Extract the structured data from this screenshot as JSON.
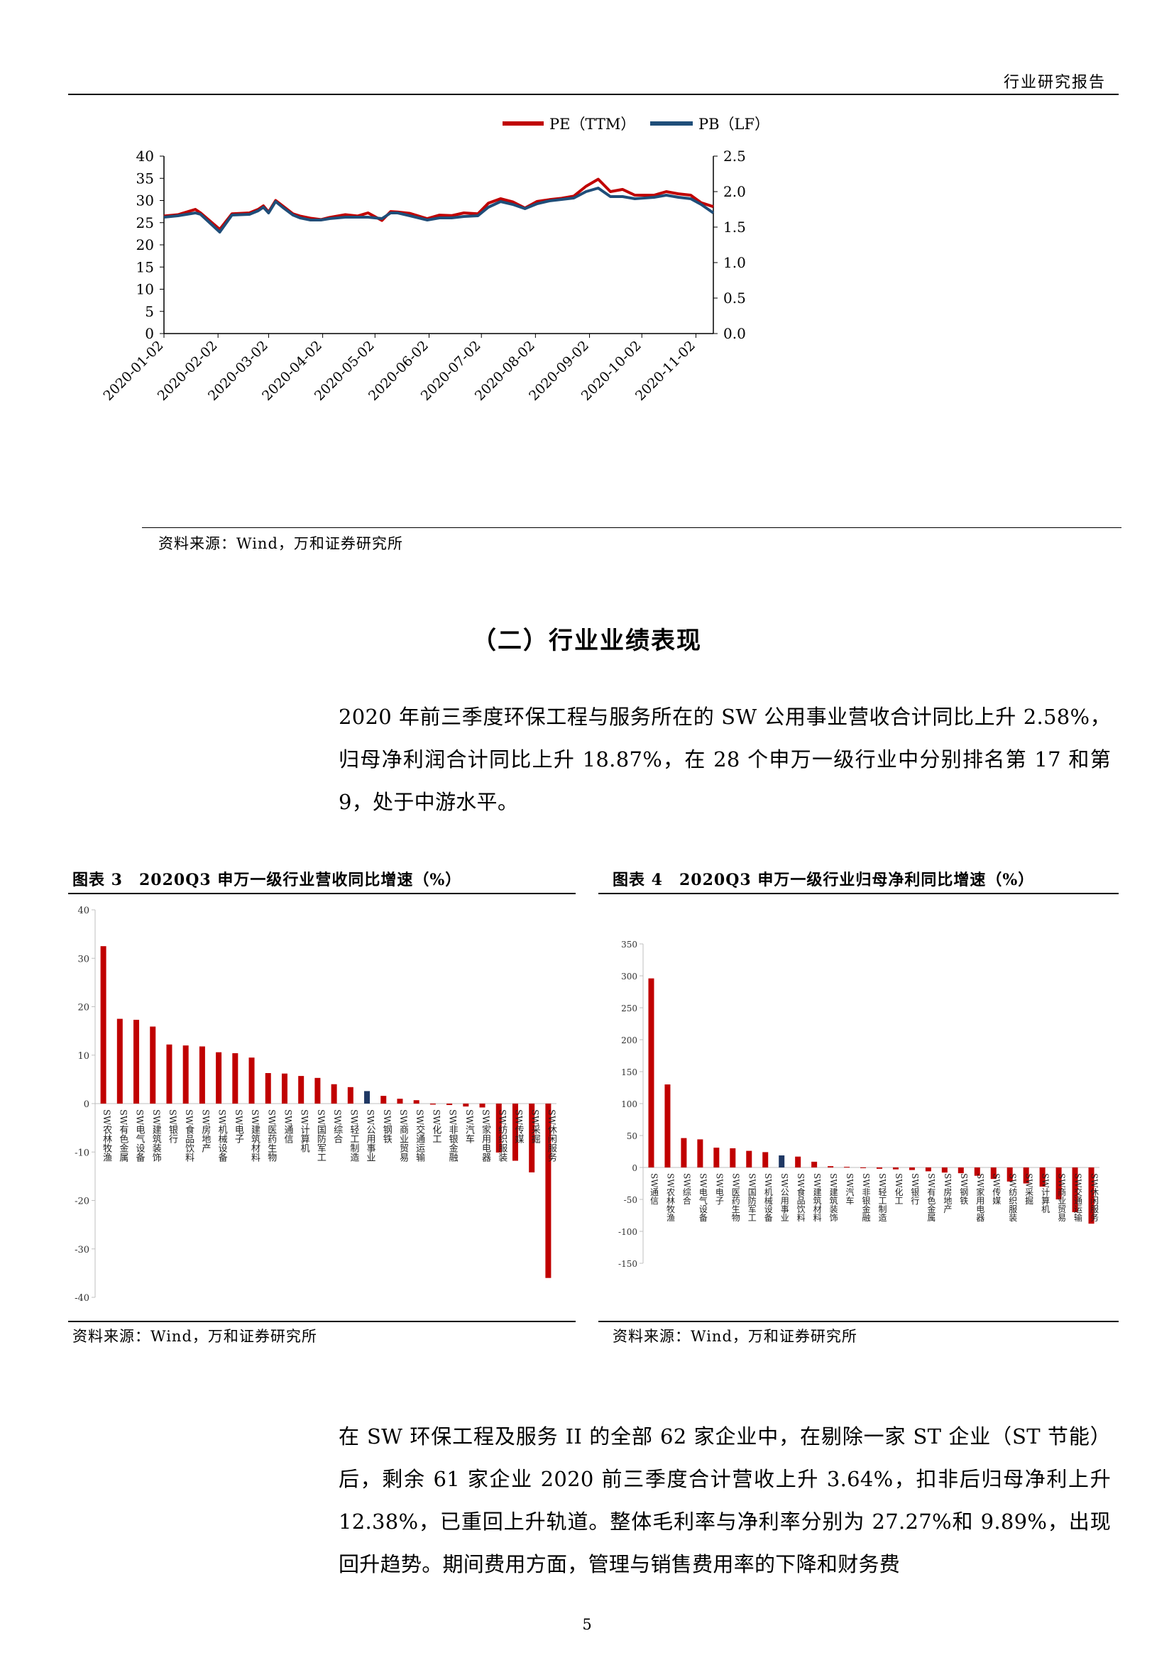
{
  "header": {
    "title": "行业研究报告"
  },
  "chart1": {
    "source": "资料来源：Wind，万和证券研究所",
    "chart_data": {
      "type": "line",
      "legend": [
        {
          "name": "PE（TTM）",
          "color": "#C00000"
        },
        {
          "name": "PB（LF）",
          "color": "#1F4E79"
        }
      ],
      "x_ticks": [
        "2020-01-02",
        "2020-02-02",
        "2020-03-02",
        "2020-04-02",
        "2020-05-02",
        "2020-06-02",
        "2020-07-02",
        "2020-08-02",
        "2020-09-02",
        "2020-10-02",
        "2020-11-02"
      ],
      "x_range": [
        "2020-01-02",
        "2020-11-12"
      ],
      "ylim_left": [
        0,
        40
      ],
      "yticks_left": [
        "0",
        "5",
        "10",
        "15",
        "20",
        "25",
        "30",
        "35",
        "40"
      ],
      "ylim_right": [
        0,
        2.5
      ],
      "yticks_right": [
        "0.0",
        "0.5",
        "1.0",
        "1.5",
        "2.0",
        "2.5"
      ],
      "series": [
        {
          "name": "PE（TTM）",
          "axis": "left",
          "color": "#C00000",
          "x": [
            "2020-01-02",
            "2020-01-10",
            "2020-01-20",
            "2020-01-23",
            "2020-02-03",
            "2020-02-10",
            "2020-02-20",
            "2020-02-25",
            "2020-02-28",
            "2020-03-02",
            "2020-03-06",
            "2020-03-10",
            "2020-03-16",
            "2020-03-20",
            "2020-03-26",
            "2020-04-01",
            "2020-04-06",
            "2020-04-15",
            "2020-04-22",
            "2020-04-28",
            "2020-05-06",
            "2020-05-11",
            "2020-05-15",
            "2020-05-22",
            "2020-06-01",
            "2020-06-08",
            "2020-06-15",
            "2020-06-22",
            "2020-06-30",
            "2020-07-06",
            "2020-07-13",
            "2020-07-20",
            "2020-07-27",
            "2020-08-03",
            "2020-08-10",
            "2020-08-17",
            "2020-08-24",
            "2020-08-31",
            "2020-09-07",
            "2020-09-14",
            "2020-09-21",
            "2020-09-28",
            "2020-10-09",
            "2020-10-16",
            "2020-10-23",
            "2020-10-30",
            "2020-11-05",
            "2020-11-12"
          ],
          "values": [
            26.5,
            26.8,
            28.0,
            27.2,
            23.5,
            27.0,
            27.2,
            28.0,
            28.8,
            27.4,
            30.0,
            28.8,
            27.0,
            26.5,
            26.0,
            25.7,
            26.2,
            26.8,
            26.5,
            27.2,
            25.5,
            27.5,
            27.4,
            27.1,
            25.9,
            26.7,
            26.6,
            27.2,
            27.0,
            29.4,
            30.4,
            29.7,
            28.3,
            29.8,
            30.2,
            30.5,
            31.0,
            33.2,
            34.8,
            32.0,
            32.5,
            31.2,
            31.2,
            32.0,
            31.5,
            31.2,
            29.5,
            28.6
          ]
        },
        {
          "name": "PB（LF）",
          "axis": "right",
          "color": "#1F4E79",
          "x": [
            "2020-01-02",
            "2020-01-10",
            "2020-01-20",
            "2020-01-23",
            "2020-02-03",
            "2020-02-10",
            "2020-02-20",
            "2020-02-25",
            "2020-02-28",
            "2020-03-02",
            "2020-03-06",
            "2020-03-10",
            "2020-03-16",
            "2020-03-20",
            "2020-03-26",
            "2020-04-01",
            "2020-04-06",
            "2020-04-15",
            "2020-04-22",
            "2020-04-28",
            "2020-05-06",
            "2020-05-11",
            "2020-05-15",
            "2020-05-22",
            "2020-06-01",
            "2020-06-08",
            "2020-06-15",
            "2020-06-22",
            "2020-06-30",
            "2020-07-06",
            "2020-07-13",
            "2020-07-20",
            "2020-07-27",
            "2020-08-03",
            "2020-08-10",
            "2020-08-17",
            "2020-08-24",
            "2020-08-31",
            "2020-09-07",
            "2020-09-14",
            "2020-09-21",
            "2020-09-28",
            "2020-10-09",
            "2020-10-16",
            "2020-10-23",
            "2020-10-30",
            "2020-11-05",
            "2020-11-12"
          ],
          "values": [
            1.64,
            1.66,
            1.7,
            1.68,
            1.43,
            1.67,
            1.68,
            1.73,
            1.78,
            1.7,
            1.86,
            1.78,
            1.67,
            1.63,
            1.6,
            1.6,
            1.62,
            1.64,
            1.64,
            1.64,
            1.62,
            1.7,
            1.7,
            1.66,
            1.6,
            1.63,
            1.63,
            1.65,
            1.66,
            1.78,
            1.86,
            1.82,
            1.76,
            1.83,
            1.87,
            1.89,
            1.91,
            2.0,
            2.05,
            1.93,
            1.93,
            1.9,
            1.92,
            1.95,
            1.92,
            1.9,
            1.82,
            1.7
          ]
        }
      ]
    }
  },
  "section": {
    "title": "（二）行业业绩表现"
  },
  "para1": "2020 年前三季度环保工程与服务所在的 SW 公用事业营收合计同比上升 2.58%，归母净利润合计同比上升 18.87%，在 28 个申万一级行业中分别排名第 17 和第 9，处于中游水平。",
  "fig3": {
    "title": "图表 3　2020Q3 申万一级行业营收同比增速（%）",
    "source": "资料来源：Wind，万和证券研究所",
    "chart_data": {
      "type": "bar",
      "ylim": [
        -40,
        40
      ],
      "yticks": [
        "40",
        "30",
        "20",
        "10",
        "0",
        "-10",
        "-20",
        "-30",
        "-40"
      ],
      "highlight_color": "#1F3864",
      "bar_color": "#C00000",
      "categories": [
        "SW农林牧渔",
        "SW有色金属",
        "SW电气设备",
        "SW建筑装饰",
        "SW银行",
        "SW食品饮料",
        "SW房地产",
        "SW机械设备",
        "SW电子",
        "SW建筑材料",
        "SW医药生物",
        "SW通信",
        "SW计算机",
        "SW国防军工",
        "SW综合",
        "SW轻工制造",
        "SW公用事业",
        "SW钢铁",
        "SW商业贸易",
        "SW交通运输",
        "SW化工",
        "SW非银金融",
        "SW汽车",
        "SW家用电器",
        "SW纺织服装",
        "SW传媒",
        "SW采掘",
        "SW休闲服务"
      ],
      "values": [
        32.5,
        17.5,
        17.3,
        15.9,
        12.2,
        12.0,
        11.8,
        10.6,
        10.4,
        9.5,
        6.3,
        6.2,
        5.7,
        5.3,
        4.0,
        3.4,
        2.58,
        1.6,
        1.0,
        0.7,
        -0.2,
        -0.3,
        -0.6,
        -0.8,
        -10.1,
        -11.8,
        -14.2,
        -36.0
      ],
      "highlight_index": 16
    }
  },
  "fig4": {
    "title": "图表 4　2020Q3 申万一级行业归母净利同比增速（%）",
    "source": "资料来源：Wind，万和证券研究所",
    "chart_data": {
      "type": "bar",
      "ylim": [
        -150,
        350
      ],
      "yticks": [
        "350",
        "300",
        "250",
        "200",
        "150",
        "100",
        "50",
        "0",
        "-50",
        "-100",
        "-150"
      ],
      "highlight_color": "#1F3864",
      "bar_color": "#C00000",
      "categories": [
        "SW通信",
        "SW农林牧渔",
        "SW综合",
        "SW电气设备",
        "SW电子",
        "SW医药生物",
        "SW国防军工",
        "SW机械设备",
        "SW公用事业",
        "SW食品饮料",
        "SW建筑材料",
        "SW建筑装饰",
        "SW汽车",
        "SW非银金融",
        "SW轻工制造",
        "SW化工",
        "SW银行",
        "SW有色金属",
        "SW房地产",
        "SW钢铁",
        "SW家用电器",
        "SW传媒",
        "SW纺织服装",
        "SW采掘",
        "SW计算机",
        "SW商业贸易",
        "SW交通运输",
        "SW休闲服务"
      ],
      "values": [
        296,
        130,
        46,
        44,
        31,
        30,
        26,
        24,
        18.87,
        17,
        9,
        2,
        1,
        -1,
        -2,
        -3,
        -4,
        -6,
        -8,
        -9,
        -13,
        -18,
        -22,
        -25,
        -30,
        -50,
        -70,
        -88
      ],
      "highlight_index": 8
    }
  },
  "para2": "在 SW 环保工程及服务 II 的全部 62 家企业中，在剔除一家 ST 企业（ST 节能）后，剩余 61 家企业 2020 前三季度合计营收上升 3.64%，扣非后归母净利上升 12.38%，已重回上升轨道。整体毛利率与净利率分别为 27.27%和 9.89%，出现回升趋势。期间费用方面，管理与销售费用率的下降和财务费",
  "page": {
    "number": "5"
  }
}
